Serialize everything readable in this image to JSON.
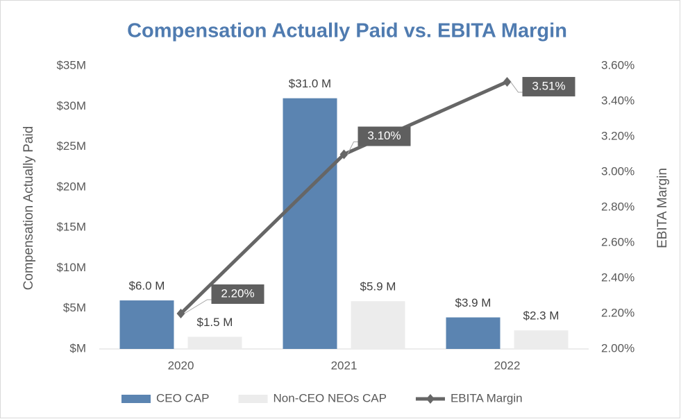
{
  "chart_data": {
    "type": "bar",
    "title": "Compensation Actually Paid vs. EBITA Margin",
    "y_label": "Compensation Actually Paid",
    "y2_label": "EBITA Margin",
    "categories": [
      "2020",
      "2021",
      "2022"
    ],
    "series": [
      {
        "name": "CEO CAP",
        "color": "#5b84b1",
        "values": [
          6.0,
          31.0,
          3.9
        ],
        "value_labels": [
          "$6.0 M",
          "$31.0 M",
          "$3.9 M"
        ]
      },
      {
        "name": "Non-CEO NEOs CAP",
        "color": "#ececec",
        "values": [
          1.5,
          5.9,
          2.3
        ],
        "value_labels": [
          "$1.5 M",
          "$5.9 M",
          "$2.3 M"
        ]
      },
      {
        "name": "EBITA Margin",
        "type": "line",
        "axis": "y2",
        "color": "#666666",
        "values": [
          2.2,
          3.1,
          3.51
        ],
        "value_labels": [
          "2.20%",
          "3.10%",
          "3.51%"
        ]
      }
    ],
    "ylim": [
      0,
      35
    ],
    "yticks": [
      {
        "value": 0,
        "label": "$M"
      },
      {
        "value": 5,
        "label": "$5M"
      },
      {
        "value": 10,
        "label": "$10M"
      },
      {
        "value": 15,
        "label": "$15M"
      },
      {
        "value": 20,
        "label": "$20M"
      },
      {
        "value": 25,
        "label": "$25M"
      },
      {
        "value": 30,
        "label": "$30M"
      },
      {
        "value": 35,
        "label": "$35M"
      }
    ],
    "y2lim": [
      2.0,
      3.6
    ],
    "y2ticks": [
      {
        "value": 2.0,
        "label": "2.00%"
      },
      {
        "value": 2.2,
        "label": "2.20%"
      },
      {
        "value": 2.4,
        "label": "2.40%"
      },
      {
        "value": 2.6,
        "label": "2.60%"
      },
      {
        "value": 2.8,
        "label": "2.80%"
      },
      {
        "value": 3.0,
        "label": "3.00%"
      },
      {
        "value": 3.2,
        "label": "3.20%"
      },
      {
        "value": 3.4,
        "label": "3.40%"
      },
      {
        "value": 3.6,
        "label": "3.60%"
      }
    ],
    "legend": "bottom"
  }
}
